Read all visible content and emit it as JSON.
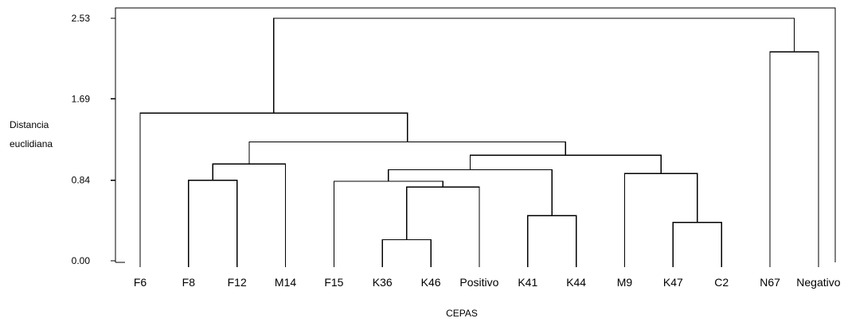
{
  "chart_data": {
    "type": "dendrogram",
    "ylabel_lines": [
      "Distancia",
      "euclidiana"
    ],
    "xlabel": "CEPAS",
    "y_ticks": [
      {
        "value": 0.0,
        "label": "0.00"
      },
      {
        "value": 0.84,
        "label": "0.84"
      },
      {
        "value": 1.69,
        "label": "1.69"
      },
      {
        "value": 2.53,
        "label": "2.53"
      }
    ],
    "ylim": [
      0,
      2.53
    ],
    "leaves": [
      "F6",
      "F8",
      "F12",
      "M14",
      "F15",
      "K36",
      "K46",
      "Positivo",
      "K41",
      "K44",
      "M9",
      "K47",
      "C2",
      "N67",
      "Negativo"
    ],
    "merges": [
      {
        "id": "c1",
        "children": [
          "K36",
          "K46"
        ],
        "height": 0.22
      },
      {
        "id": "c2",
        "children": [
          "c1",
          "Positivo"
        ],
        "height": 0.77
      },
      {
        "id": "c3",
        "children": [
          "F15",
          "c2"
        ],
        "height": 0.83
      },
      {
        "id": "c4",
        "children": [
          "K41",
          "K44"
        ],
        "height": 0.47
      },
      {
        "id": "c5",
        "children": [
          "c3",
          "c4"
        ],
        "height": 0.95
      },
      {
        "id": "c6",
        "children": [
          "K47",
          "C2"
        ],
        "height": 0.4
      },
      {
        "id": "c7",
        "children": [
          "M9",
          "c6"
        ],
        "height": 0.91
      },
      {
        "id": "c8",
        "children": [
          "c5",
          "c7"
        ],
        "height": 1.1
      },
      {
        "id": "c9",
        "children": [
          "F8",
          "F12"
        ],
        "height": 0.84
      },
      {
        "id": "c10",
        "children": [
          "c9",
          "M14"
        ],
        "height": 1.01
      },
      {
        "id": "c11",
        "children": [
          "c10",
          "c8"
        ],
        "height": 1.24
      },
      {
        "id": "c12",
        "children": [
          "F6",
          "c11"
        ],
        "height": 1.54
      },
      {
        "id": "c13",
        "children": [
          "N67",
          "Negativo"
        ],
        "height": 2.18
      },
      {
        "id": "c14",
        "children": [
          "c12",
          "c13"
        ],
        "height": 2.53
      }
    ]
  }
}
